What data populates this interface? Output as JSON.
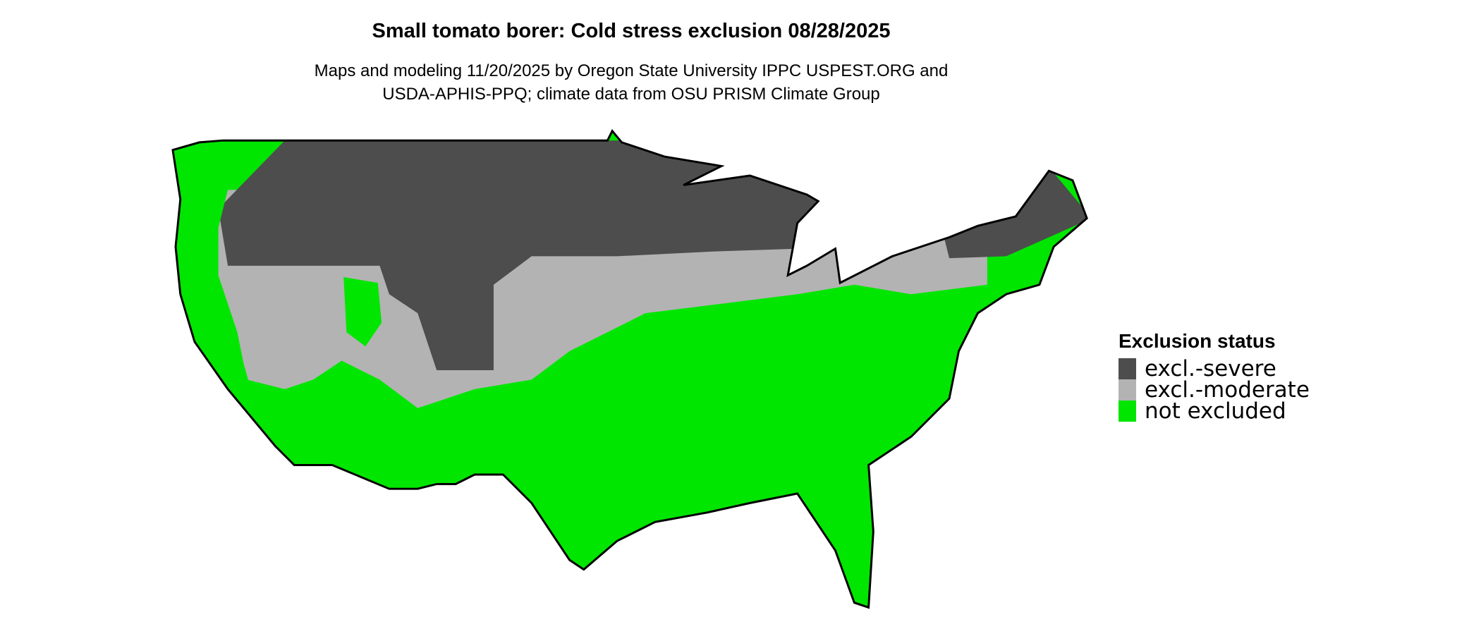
{
  "chart_data": {
    "type": "map",
    "title": "Small tomato borer: Cold stress exclusion 08/28/2025",
    "subtitle_lines": [
      "Maps and modeling 11/20/2025 by Oregon State University IPPC USPEST.ORG and",
      "USDA-APHIS-PPQ; climate data from OSU PRISM Climate Group"
    ],
    "region": "Contiguous United States",
    "legend": {
      "title": "Exclusion status",
      "position": "right",
      "entries": [
        {
          "label": "excl.-severe",
          "color": "#4d4d4d"
        },
        {
          "label": "excl.-moderate",
          "color": "#b3b3b3"
        },
        {
          "label": "not excluded",
          "color": "#00e600"
        }
      ]
    }
  }
}
